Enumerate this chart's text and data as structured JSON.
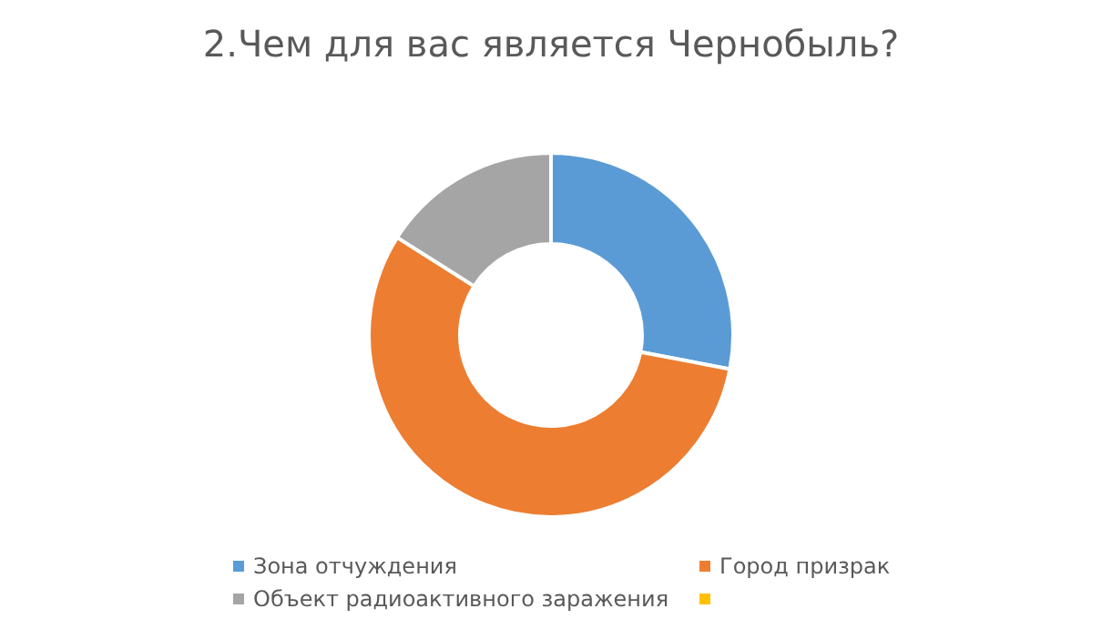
{
  "chart_data": {
    "type": "donut",
    "title": "2.Чем для вас является Чернобыль?",
    "categories": [
      "Зона отчуждения",
      "Город призрак",
      "Объект радиоактивного заражения",
      null
    ],
    "values": [
      28,
      56,
      16,
      0
    ],
    "colors": [
      "#5b9bd5",
      "#ed7d31",
      "#a5a5a5",
      "#ffc000"
    ],
    "legend": "bottom"
  }
}
